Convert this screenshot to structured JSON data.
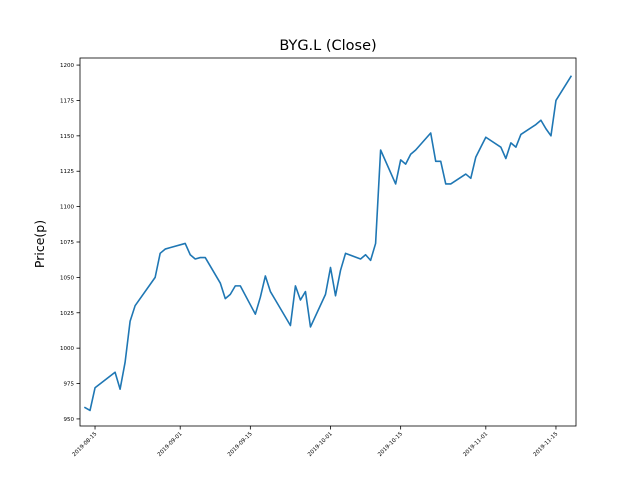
{
  "chart_data": {
    "type": "line",
    "title": "BYG.L (Close)",
    "xlabel": "",
    "ylabel": "Price(p)",
    "ylim": [
      945,
      1205
    ],
    "xlim": [
      "2019-08-12",
      "2019-11-19"
    ],
    "grid": false,
    "legend": "none",
    "line_color": "#1f77b4",
    "yticks": [
      950,
      975,
      1000,
      1025,
      1050,
      1075,
      1100,
      1125,
      1150,
      1175,
      1200
    ],
    "ytick_labels": [
      "950",
      "975",
      "1000",
      "1025",
      "1050",
      "1075",
      "1100",
      "1125",
      "1150",
      "1175",
      "1200"
    ],
    "xticks": [
      "2019-08-15",
      "2019-09-01",
      "2019-09-15",
      "2019-10-01",
      "2019-10-15",
      "2019-11-01",
      "2019-11-15"
    ],
    "xtick_labels": [
      "2019-08-15",
      "2019-09-01",
      "2019-09-15",
      "2019-10-01",
      "2019-10-15",
      "2019-11-01",
      "2019-11-15"
    ],
    "series": [
      {
        "x": [
          "2019-08-13",
          "2019-08-14",
          "2019-08-15",
          "2019-08-19",
          "2019-08-20",
          "2019-08-21",
          "2019-08-22",
          "2019-08-23",
          "2019-08-27",
          "2019-08-28",
          "2019-08-29",
          "2019-08-30",
          "2019-09-02",
          "2019-09-03",
          "2019-09-04",
          "2019-09-05",
          "2019-09-06",
          "2019-09-09",
          "2019-09-10",
          "2019-09-11",
          "2019-09-12",
          "2019-09-13",
          "2019-09-16",
          "2019-09-17",
          "2019-09-18",
          "2019-09-19",
          "2019-09-20",
          "2019-09-23",
          "2019-09-24",
          "2019-09-25",
          "2019-09-26",
          "2019-09-27",
          "2019-09-30",
          "2019-10-01",
          "2019-10-02",
          "2019-10-03",
          "2019-10-04",
          "2019-10-07",
          "2019-10-08",
          "2019-10-09",
          "2019-10-10",
          "2019-10-11",
          "2019-10-14",
          "2019-10-15",
          "2019-10-16",
          "2019-10-17",
          "2019-10-18",
          "2019-10-21",
          "2019-10-22",
          "2019-10-23",
          "2019-10-24",
          "2019-10-25",
          "2019-10-28",
          "2019-10-29",
          "2019-10-30",
          "2019-10-31",
          "2019-11-01",
          "2019-11-04",
          "2019-11-05",
          "2019-11-06",
          "2019-11-07",
          "2019-11-08",
          "2019-11-11",
          "2019-11-12",
          "2019-11-13",
          "2019-11-14",
          "2019-11-15",
          "2019-11-18"
        ],
        "values": [
          958,
          956,
          972,
          983,
          971,
          990,
          1019,
          1030,
          1050,
          1067,
          1070,
          1071,
          1074,
          1066,
          1063,
          1064,
          1064,
          1046,
          1035,
          1038,
          1044,
          1044,
          1024,
          1036,
          1051,
          1040,
          1034,
          1016,
          1044,
          1034,
          1040,
          1015,
          1038,
          1057,
          1037,
          1055,
          1067,
          1063,
          1066,
          1062,
          1074,
          1140,
          1116,
          1133,
          1130,
          1137,
          1140,
          1152,
          1132,
          1132,
          1116,
          1116,
          1123,
          1120,
          1135,
          1142,
          1149,
          1142,
          1134,
          1145,
          1142,
          1151,
          1158,
          1161,
          1155,
          1150,
          1175,
          1192
        ]
      }
    ]
  }
}
